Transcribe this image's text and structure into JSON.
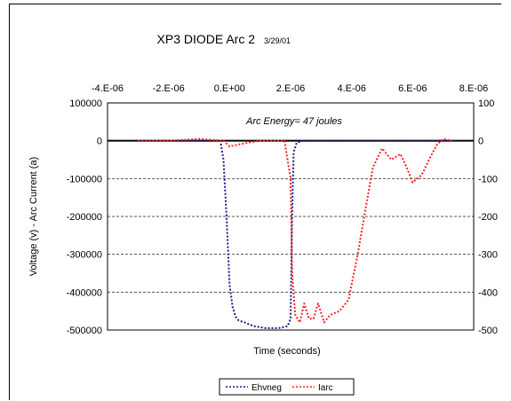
{
  "chart_data": {
    "type": "line",
    "title": "XP3 DIODE Arc 2",
    "subtitle": "3/29/01",
    "xlabel": "Time (seconds)",
    "ylabel": "Voltage (v) - Arc Current (a)",
    "annotation": "Arc Energy= 47 joules",
    "x_ticks": [
      "-4.E-06",
      "-2.E-06",
      "0.E+00",
      "2.E-06",
      "4.E-06",
      "6.E-06",
      "8.E-06"
    ],
    "xlim": [
      -4e-06,
      8e-06
    ],
    "y_left_ticks": [
      "100000",
      "0",
      "-100000",
      "-200000",
      "-300000",
      "-400000",
      "-500000"
    ],
    "ylim_left": [
      -500000,
      100000
    ],
    "y_right_ticks": [
      "100",
      "0",
      "-100",
      "-200",
      "-300",
      "-400",
      "-500"
    ],
    "ylim_right": [
      -500,
      100
    ],
    "grid": true,
    "legend_position": "bottom",
    "colors": {
      "ehvneg": "#1a1a8c",
      "iarc": "#ff2020",
      "zero_line": "#000000",
      "grid": "#555555"
    },
    "series": [
      {
        "name": "Ehvneg",
        "axis": "left",
        "style": "dotted",
        "x": [
          -3e-06,
          -2e-06,
          -1e-06,
          -3e-07,
          -2e-07,
          -1e-07,
          0.0,
          1e-07,
          2e-07,
          3e-07,
          5e-07,
          8e-07,
          1.2e-06,
          1.6e-06,
          1.9e-06,
          2e-06,
          2.05e-06,
          2.1e-06,
          2.2e-06,
          2.4e-06,
          2.6e-06,
          2.8e-06,
          3e-06,
          3.5e-06,
          4e-06,
          4.5e-06,
          5e-06,
          5.5e-06,
          6e-06,
          6.5e-06,
          7e-06,
          7.5e-06
        ],
        "y": [
          0,
          0,
          0,
          0,
          -50000,
          -200000,
          -380000,
          -440000,
          -465000,
          -475000,
          -480000,
          -490000,
          -495000,
          -495000,
          -490000,
          -470000,
          -200000,
          -30000,
          -5000,
          0,
          0,
          0,
          0,
          0,
          0,
          0,
          0,
          0,
          0,
          0,
          0,
          0
        ]
      },
      {
        "name": "Iarc",
        "axis": "right",
        "style": "dotted",
        "x": [
          -3e-06,
          -2e-06,
          -1e-06,
          -2e-07,
          0.0,
          3e-07,
          6e-07,
          1e-06,
          1.5e-06,
          1.8e-06,
          2e-06,
          2.05e-06,
          2.15e-06,
          2.3e-06,
          2.45e-06,
          2.6e-06,
          2.75e-06,
          2.9e-06,
          3.1e-06,
          3.3e-06,
          3.6e-06,
          3.9e-06,
          4.2e-06,
          4.5e-06,
          4.7e-06,
          5e-06,
          5.3e-06,
          5.6e-06,
          5.8e-06,
          6e-06,
          6.3e-06,
          6.6e-06,
          6.8e-06,
          7e-06,
          7.3e-06
        ],
        "y": [
          0,
          0,
          5,
          0,
          -15,
          -10,
          -5,
          0,
          0,
          0,
          -100,
          -350,
          -460,
          -480,
          -430,
          -470,
          -470,
          -430,
          -480,
          -460,
          -450,
          -420,
          -300,
          -160,
          -70,
          -20,
          -50,
          -35,
          -70,
          -110,
          -90,
          -40,
          -10,
          5,
          0
        ]
      }
    ]
  }
}
